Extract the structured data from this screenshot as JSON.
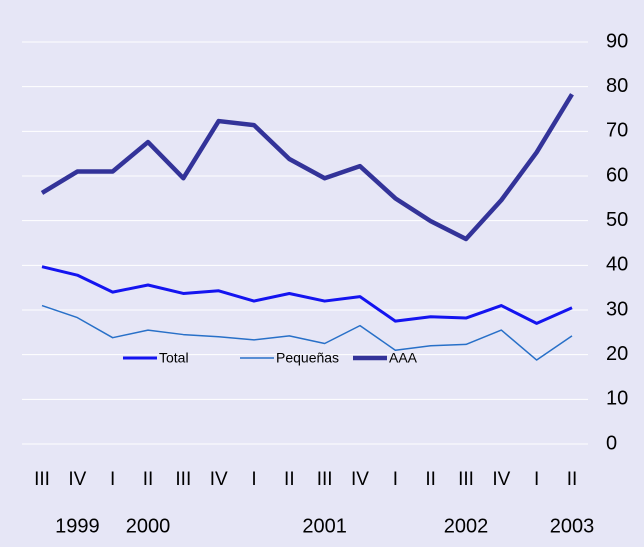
{
  "chart_data": {
    "type": "line",
    "categories": [
      "III",
      "IV",
      "I",
      "II",
      "III",
      "IV",
      "I",
      "II",
      "III",
      "IV",
      "I",
      "II",
      "III",
      "IV",
      "I",
      "II"
    ],
    "years": [
      null,
      "1999",
      null,
      "2000",
      null,
      null,
      null,
      null,
      "2001",
      null,
      null,
      null,
      "2002",
      null,
      null,
      "2003"
    ],
    "series": [
      {
        "name": "Total",
        "color": "#1414f0",
        "width": 3,
        "values": [
          39.7,
          37.8,
          34,
          35.6,
          33.7,
          34.3,
          32,
          33.7,
          32,
          33,
          27.5,
          28.5,
          28.2,
          31,
          27,
          30.5
        ]
      },
      {
        "name": "Pequeñas",
        "color": "#2870c8",
        "width": 1.5,
        "values": [
          31,
          28.3,
          23.8,
          25.5,
          24.5,
          24,
          23.3,
          24.2,
          22.5,
          26.5,
          21,
          22,
          22.3,
          25.5,
          18.8,
          24.2
        ]
      },
      {
        "name": "AAA",
        "color": "#333399",
        "width": 4.5,
        "values": [
          56.2,
          61,
          61,
          67.6,
          59.5,
          72.3,
          71.4,
          63.8,
          59.5,
          62.2,
          55,
          49.9,
          45.9,
          54.6,
          65.3,
          78.3
        ]
      }
    ],
    "ylim": [
      0,
      90
    ],
    "yticks": [
      0,
      10,
      20,
      30,
      40,
      50,
      60,
      70,
      80,
      90
    ],
    "grid": true
  }
}
